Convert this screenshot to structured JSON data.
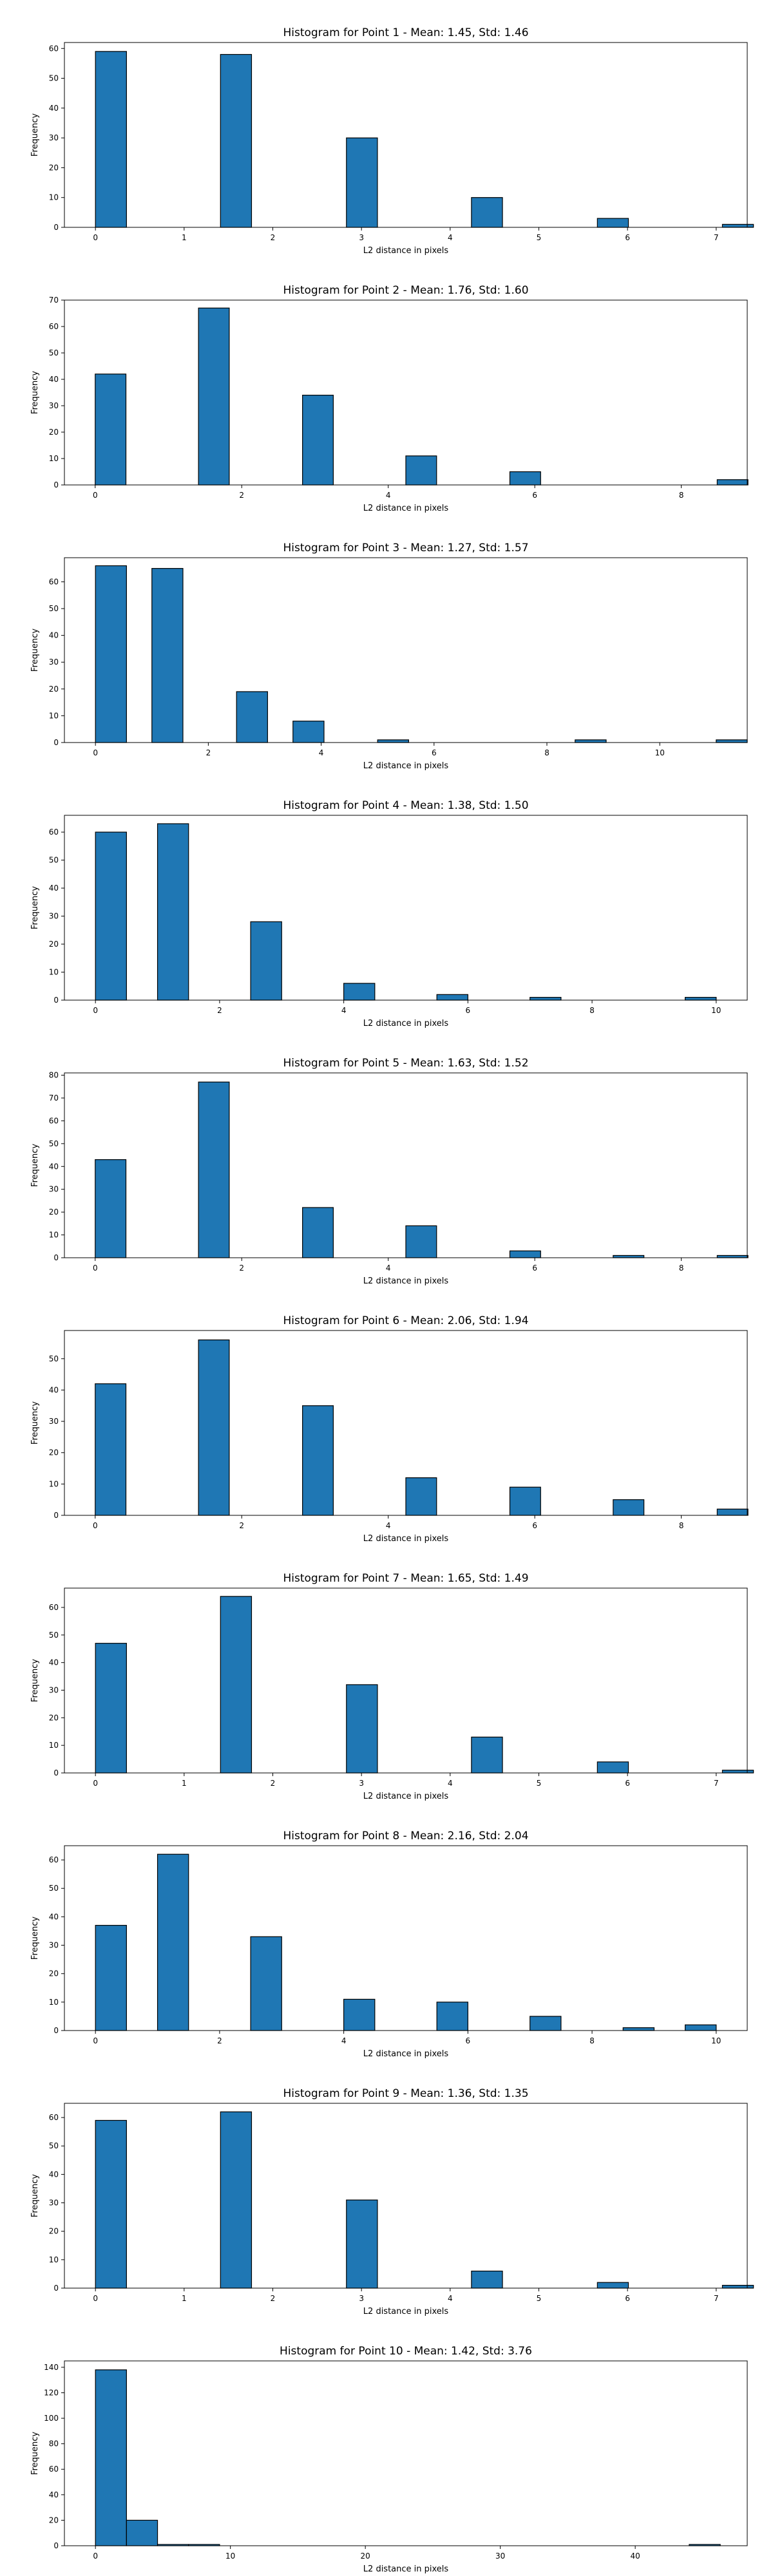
{
  "chart_data": [
    {
      "type": "bar",
      "title": "Histogram for Point 1 - Mean: 1.45, Std: 1.46",
      "xlabel": "L2 distance in pixels",
      "ylabel": "Frequency",
      "bar_color": "#1f77b4",
      "xlim": [
        -0.35,
        7.35
      ],
      "ylim": [
        0,
        62
      ],
      "xticks": [
        0,
        1,
        2,
        3,
        4,
        5,
        6,
        7
      ],
      "yticks": [
        0,
        10,
        20,
        30,
        40,
        50,
        60
      ],
      "bin_width": 0.35,
      "bins": [
        {
          "x": 0.0,
          "count": 59
        },
        {
          "x": 1.41,
          "count": 58
        },
        {
          "x": 2.83,
          "count": 30
        },
        {
          "x": 4.24,
          "count": 10
        },
        {
          "x": 5.66,
          "count": 3
        },
        {
          "x": 7.07,
          "count": 1
        }
      ]
    },
    {
      "type": "bar",
      "title": "Histogram for Point 2 - Mean: 1.76, Std: 1.60",
      "xlabel": "L2 distance in pixels",
      "ylabel": "Frequency",
      "bar_color": "#1f77b4",
      "xlim": [
        -0.42,
        8.9
      ],
      "ylim": [
        0,
        70
      ],
      "xticks": [
        0,
        2,
        4,
        6,
        8
      ],
      "yticks": [
        0,
        10,
        20,
        30,
        40,
        50,
        60,
        70
      ],
      "bin_width": 0.42,
      "bins": [
        {
          "x": 0.0,
          "count": 42
        },
        {
          "x": 1.41,
          "count": 67
        },
        {
          "x": 2.83,
          "count": 34
        },
        {
          "x": 4.24,
          "count": 11
        },
        {
          "x": 5.66,
          "count": 5
        },
        {
          "x": 8.49,
          "count": 2
        }
      ]
    },
    {
      "type": "bar",
      "title": "Histogram for Point 3 - Mean: 1.27, Std: 1.57",
      "xlabel": "L2 distance in pixels",
      "ylabel": "Frequency",
      "bar_color": "#1f77b4",
      "xlim": [
        -0.55,
        11.55
      ],
      "ylim": [
        0,
        69
      ],
      "xticks": [
        0,
        2,
        4,
        6,
        8,
        10
      ],
      "yticks": [
        0,
        10,
        20,
        30,
        40,
        50,
        60
      ],
      "bin_width": 0.55,
      "bins": [
        {
          "x": 0.0,
          "count": 66
        },
        {
          "x": 1.0,
          "count": 65
        },
        {
          "x": 2.5,
          "count": 19
        },
        {
          "x": 3.5,
          "count": 8
        },
        {
          "x": 5.0,
          "count": 1
        },
        {
          "x": 8.5,
          "count": 1
        },
        {
          "x": 11.0,
          "count": 1
        }
      ]
    },
    {
      "type": "bar",
      "title": "Histogram for Point 4 - Mean: 1.38, Std: 1.50",
      "xlabel": "L2 distance in pixels",
      "ylabel": "Frequency",
      "bar_color": "#1f77b4",
      "xlim": [
        -0.5,
        10.5
      ],
      "ylim": [
        0,
        66
      ],
      "xticks": [
        0,
        2,
        4,
        6,
        8,
        10
      ],
      "yticks": [
        0,
        10,
        20,
        30,
        40,
        50,
        60
      ],
      "bin_width": 0.5,
      "bins": [
        {
          "x": 0.0,
          "count": 60
        },
        {
          "x": 1.0,
          "count": 63
        },
        {
          "x": 2.5,
          "count": 28
        },
        {
          "x": 4.0,
          "count": 6
        },
        {
          "x": 5.5,
          "count": 2
        },
        {
          "x": 7.0,
          "count": 1
        },
        {
          "x": 9.5,
          "count": 1
        }
      ]
    },
    {
      "type": "bar",
      "title": "Histogram for Point 5 - Mean: 1.63, Std: 1.52",
      "xlabel": "L2 distance in pixels",
      "ylabel": "Frequency",
      "bar_color": "#1f77b4",
      "xlim": [
        -0.42,
        8.9
      ],
      "ylim": [
        0,
        81
      ],
      "xticks": [
        0,
        2,
        4,
        6,
        8
      ],
      "yticks": [
        0,
        10,
        20,
        30,
        40,
        50,
        60,
        70,
        80
      ],
      "bin_width": 0.42,
      "bins": [
        {
          "x": 0.0,
          "count": 43
        },
        {
          "x": 1.41,
          "count": 77
        },
        {
          "x": 2.83,
          "count": 22
        },
        {
          "x": 4.24,
          "count": 14
        },
        {
          "x": 5.66,
          "count": 3
        },
        {
          "x": 7.07,
          "count": 1
        },
        {
          "x": 8.49,
          "count": 1
        }
      ]
    },
    {
      "type": "bar",
      "title": "Histogram for Point 6 - Mean: 2.06, Std: 1.94",
      "xlabel": "L2 distance in pixels",
      "ylabel": "Frequency",
      "bar_color": "#1f77b4",
      "xlim": [
        -0.42,
        8.9
      ],
      "ylim": [
        0,
        59
      ],
      "xticks": [
        0,
        2,
        4,
        6,
        8
      ],
      "yticks": [
        0,
        10,
        20,
        30,
        40,
        50
      ],
      "bin_width": 0.42,
      "bins": [
        {
          "x": 0.0,
          "count": 42
        },
        {
          "x": 1.41,
          "count": 56
        },
        {
          "x": 2.83,
          "count": 35
        },
        {
          "x": 4.24,
          "count": 12
        },
        {
          "x": 5.66,
          "count": 9
        },
        {
          "x": 7.07,
          "count": 5
        },
        {
          "x": 8.49,
          "count": 2
        }
      ]
    },
    {
      "type": "bar",
      "title": "Histogram for Point 7 - Mean: 1.65, Std: 1.49",
      "xlabel": "L2 distance in pixels",
      "ylabel": "Frequency",
      "bar_color": "#1f77b4",
      "xlim": [
        -0.35,
        7.35
      ],
      "ylim": [
        0,
        67
      ],
      "xticks": [
        0,
        1,
        2,
        3,
        4,
        5,
        6,
        7
      ],
      "yticks": [
        0,
        10,
        20,
        30,
        40,
        50,
        60
      ],
      "bin_width": 0.35,
      "bins": [
        {
          "x": 0.0,
          "count": 47
        },
        {
          "x": 1.41,
          "count": 64
        },
        {
          "x": 2.83,
          "count": 32
        },
        {
          "x": 4.24,
          "count": 13
        },
        {
          "x": 5.66,
          "count": 4
        },
        {
          "x": 7.07,
          "count": 1
        }
      ]
    },
    {
      "type": "bar",
      "title": "Histogram for Point 8 - Mean: 2.16, Std: 2.04",
      "xlabel": "L2 distance in pixels",
      "ylabel": "Frequency",
      "bar_color": "#1f77b4",
      "xlim": [
        -0.5,
        10.5
      ],
      "ylim": [
        0,
        65
      ],
      "xticks": [
        0,
        2,
        4,
        6,
        8,
        10
      ],
      "yticks": [
        0,
        10,
        20,
        30,
        40,
        50,
        60
      ],
      "bin_width": 0.5,
      "bins": [
        {
          "x": 0.0,
          "count": 37
        },
        {
          "x": 1.0,
          "count": 62
        },
        {
          "x": 2.5,
          "count": 33
        },
        {
          "x": 4.0,
          "count": 11
        },
        {
          "x": 5.5,
          "count": 10
        },
        {
          "x": 7.0,
          "count": 5
        },
        {
          "x": 8.5,
          "count": 1
        },
        {
          "x": 9.5,
          "count": 2
        }
      ]
    },
    {
      "type": "bar",
      "title": "Histogram for Point 9 - Mean: 1.36, Std: 1.35",
      "xlabel": "L2 distance in pixels",
      "ylabel": "Frequency",
      "bar_color": "#1f77b4",
      "xlim": [
        -0.35,
        7.35
      ],
      "ylim": [
        0,
        65
      ],
      "xticks": [
        0,
        1,
        2,
        3,
        4,
        5,
        6,
        7
      ],
      "yticks": [
        0,
        10,
        20,
        30,
        40,
        50,
        60
      ],
      "bin_width": 0.35,
      "bins": [
        {
          "x": 0.0,
          "count": 59
        },
        {
          "x": 1.41,
          "count": 62
        },
        {
          "x": 2.83,
          "count": 31
        },
        {
          "x": 4.24,
          "count": 6
        },
        {
          "x": 5.66,
          "count": 2
        },
        {
          "x": 7.07,
          "count": 1
        }
      ]
    },
    {
      "type": "bar",
      "title": "Histogram for Point 10 - Mean: 1.42, Std: 3.76",
      "xlabel": "L2 distance in pixels",
      "ylabel": "Frequency",
      "bar_color": "#1f77b4",
      "xlim": [
        -2.3,
        48.3
      ],
      "ylim": [
        0,
        145
      ],
      "xticks": [
        0,
        10,
        20,
        30,
        40
      ],
      "yticks": [
        0,
        20,
        40,
        60,
        80,
        100,
        120,
        140
      ],
      "bin_width": 2.3,
      "bins": [
        {
          "x": 0.0,
          "count": 138
        },
        {
          "x": 2.3,
          "count": 20
        },
        {
          "x": 4.6,
          "count": 1
        },
        {
          "x": 6.9,
          "count": 1
        },
        {
          "x": 44.0,
          "count": 1
        }
      ]
    }
  ]
}
